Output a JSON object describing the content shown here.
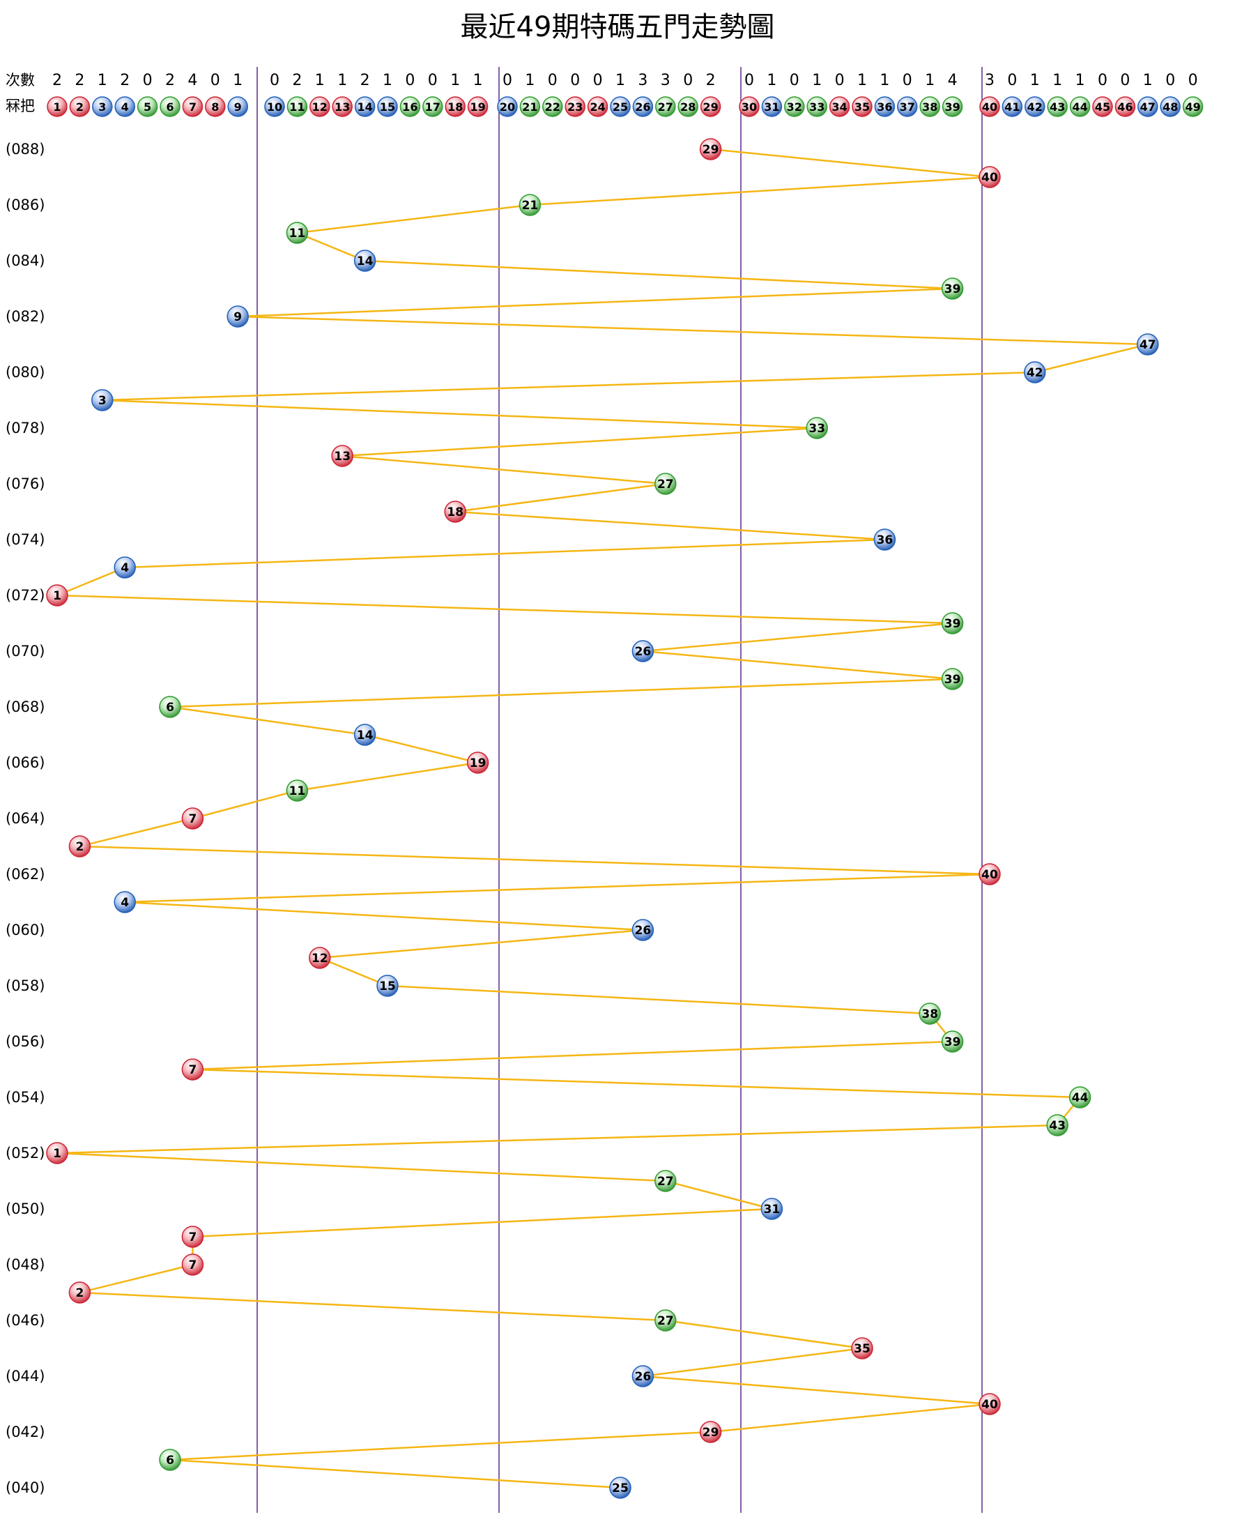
{
  "chart_data": {
    "type": "line",
    "title": "最近49期特碼五門走勢圖",
    "row_labels": {
      "count": "次數",
      "numbers": "冧把"
    },
    "numbers": [
      1,
      2,
      3,
      4,
      5,
      6,
      7,
      8,
      9,
      10,
      11,
      12,
      13,
      14,
      15,
      16,
      17,
      18,
      19,
      20,
      21,
      22,
      23,
      24,
      25,
      26,
      27,
      28,
      29,
      30,
      31,
      32,
      33,
      34,
      35,
      36,
      37,
      38,
      39,
      40,
      41,
      42,
      43,
      44,
      45,
      46,
      47,
      48,
      49
    ],
    "counts": [
      2,
      2,
      1,
      2,
      0,
      2,
      4,
      0,
      1,
      0,
      2,
      1,
      1,
      2,
      1,
      0,
      0,
      1,
      1,
      0,
      1,
      0,
      0,
      0,
      1,
      3,
      3,
      0,
      2,
      0,
      1,
      0,
      1,
      0,
      1,
      1,
      0,
      1,
      4,
      3,
      0,
      1,
      1,
      1,
      0,
      0,
      1,
      0,
      0
    ],
    "number_colors": {
      "red": [
        1,
        2,
        7,
        8,
        12,
        13,
        18,
        19,
        23,
        24,
        29,
        30,
        34,
        35,
        40,
        45,
        46
      ],
      "blue": [
        3,
        4,
        9,
        10,
        14,
        15,
        20,
        25,
        26,
        31,
        36,
        37,
        41,
        42,
        47,
        48
      ],
      "green": [
        5,
        6,
        11,
        16,
        17,
        21,
        22,
        27,
        28,
        32,
        33,
        38,
        39,
        43,
        44,
        49
      ]
    },
    "groups": [
      [
        1,
        9
      ],
      [
        10,
        19
      ],
      [
        20,
        29
      ],
      [
        30,
        39
      ],
      [
        40,
        49
      ]
    ],
    "period_labels": [
      "(088)",
      "(086)",
      "(084)",
      "(082)",
      "(080)",
      "(078)",
      "(076)",
      "(074)",
      "(072)",
      "(070)",
      "(068)",
      "(066)",
      "(064)",
      "(062)",
      "(060)",
      "(058)",
      "(056)",
      "(054)",
      "(052)",
      "(050)",
      "(048)",
      "(046)",
      "(044)",
      "(042)",
      "(040)"
    ],
    "draws": [
      {
        "period": "088",
        "number": 29
      },
      {
        "period": "087",
        "number": 40
      },
      {
        "period": "086",
        "number": 21
      },
      {
        "period": "085",
        "number": 11
      },
      {
        "period": "084",
        "number": 14
      },
      {
        "period": "083",
        "number": 39
      },
      {
        "period": "082",
        "number": 9
      },
      {
        "period": "081",
        "number": 47
      },
      {
        "period": "080",
        "number": 42
      },
      {
        "period": "079",
        "number": 3
      },
      {
        "period": "078",
        "number": 33
      },
      {
        "period": "077",
        "number": 13
      },
      {
        "period": "076",
        "number": 27
      },
      {
        "period": "075",
        "number": 18
      },
      {
        "period": "074",
        "number": 36
      },
      {
        "period": "073",
        "number": 4
      },
      {
        "period": "072",
        "number": 1
      },
      {
        "period": "071",
        "number": 39
      },
      {
        "period": "070",
        "number": 26
      },
      {
        "period": "069",
        "number": 39
      },
      {
        "period": "068",
        "number": 6
      },
      {
        "period": "067",
        "number": 14
      },
      {
        "period": "066",
        "number": 19
      },
      {
        "period": "065",
        "number": 11
      },
      {
        "period": "064",
        "number": 7
      },
      {
        "period": "063",
        "number": 2
      },
      {
        "period": "062",
        "number": 40
      },
      {
        "period": "061",
        "number": 4
      },
      {
        "period": "060",
        "number": 26
      },
      {
        "period": "059",
        "number": 12
      },
      {
        "period": "058",
        "number": 15
      },
      {
        "period": "057",
        "number": 38
      },
      {
        "period": "056",
        "number": 39
      },
      {
        "period": "055",
        "number": 7
      },
      {
        "period": "054",
        "number": 44
      },
      {
        "period": "053",
        "number": 43
      },
      {
        "period": "052",
        "number": 1
      },
      {
        "period": "051",
        "number": 27
      },
      {
        "period": "050",
        "number": 31
      },
      {
        "period": "049",
        "number": 7
      },
      {
        "period": "048",
        "number": 7
      },
      {
        "period": "047",
        "number": 2
      },
      {
        "period": "046",
        "number": 27
      },
      {
        "period": "045",
        "number": 35
      },
      {
        "period": "044",
        "number": 26
      },
      {
        "period": "043",
        "number": 40
      },
      {
        "period": "042",
        "number": 29
      },
      {
        "period": "041",
        "number": 6
      },
      {
        "period": "040",
        "number": 25
      }
    ],
    "colors": {
      "red": "#cc2233",
      "blue": "#1f5fb8",
      "green": "#2f9a2f",
      "line": "#f5b614",
      "divider": "#5a2a8a"
    }
  }
}
